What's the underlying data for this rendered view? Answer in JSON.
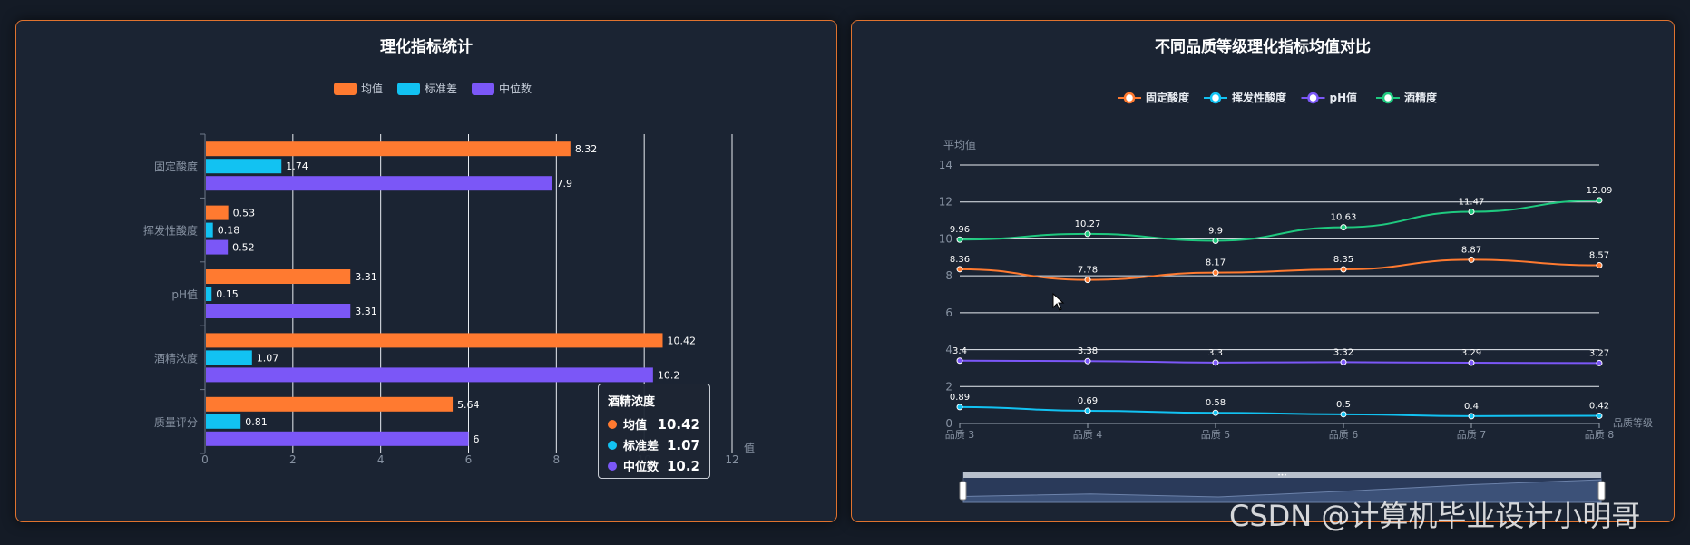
{
  "left": {
    "title": "理化指标统计",
    "legend": [
      {
        "name": "均值",
        "color": "#ff7a30"
      },
      {
        "name": "标准差",
        "color": "#12c2f2"
      },
      {
        "name": "中位数",
        "color": "#7b57f7"
      }
    ],
    "value_axis_label": "值",
    "tooltip": {
      "title": "酒精浓度",
      "rows": [
        {
          "name": "均值",
          "value": "10.42",
          "color": "#ff7a30"
        },
        {
          "name": "标准差",
          "value": "1.07",
          "color": "#12c2f2"
        },
        {
          "name": "中位数",
          "value": "10.2",
          "color": "#7b57f7"
        }
      ]
    }
  },
  "right": {
    "title": "不同品质等级理化指标均值对比",
    "y_axis_name": "平均值",
    "x_axis_name": "品质等级"
  },
  "watermark": "CSDN @计算机毕业设计小明哥",
  "chart_data": [
    {
      "type": "bar",
      "orientation": "horizontal",
      "title": "理化指标统计",
      "categories": [
        "固定酸度",
        "挥发性酸度",
        "pH值",
        "酒精浓度",
        "质量评分"
      ],
      "series": [
        {
          "name": "均值",
          "color": "#ff7a30",
          "values": [
            8.32,
            0.53,
            3.31,
            10.42,
            5.64
          ]
        },
        {
          "name": "标准差",
          "color": "#12c2f2",
          "values": [
            1.74,
            0.18,
            0.15,
            1.07,
            0.81
          ]
        },
        {
          "name": "中位数",
          "color": "#7b57f7",
          "values": [
            7.9,
            0.52,
            3.31,
            10.2,
            6
          ]
        }
      ],
      "xlabel": "值",
      "xlim": [
        0,
        12
      ],
      "xticks": [
        0,
        2,
        4,
        6,
        8,
        10,
        12
      ],
      "grid": true,
      "legend": "top-center"
    },
    {
      "type": "line",
      "title": "不同品质等级理化指标均值对比",
      "x": [
        "品质 3",
        "品质 4",
        "品质 5",
        "品质 6",
        "品质 7",
        "品质 8"
      ],
      "series": [
        {
          "name": "固定酸度",
          "color": "#ff7a30",
          "values": [
            8.36,
            7.78,
            8.17,
            8.35,
            8.87,
            8.57
          ]
        },
        {
          "name": "挥发性酸度",
          "color": "#12c2f2",
          "values": [
            0.89,
            0.69,
            0.58,
            0.5,
            0.4,
            0.42
          ]
        },
        {
          "name": "pH值",
          "color": "#7b57f7",
          "values": [
            3.4,
            3.38,
            3.3,
            3.32,
            3.29,
            3.27
          ]
        },
        {
          "name": "酒精度",
          "color": "#1fc97f",
          "values": [
            9.96,
            10.27,
            9.9,
            10.63,
            11.47,
            12.09
          ]
        }
      ],
      "xlabel": "品质等级",
      "ylabel": "平均值",
      "ylim": [
        0,
        14
      ],
      "yticks": [
        0,
        2,
        4,
        6,
        8,
        10,
        12,
        14
      ],
      "grid": true,
      "legend": "top-center",
      "datazoom": true
    }
  ]
}
